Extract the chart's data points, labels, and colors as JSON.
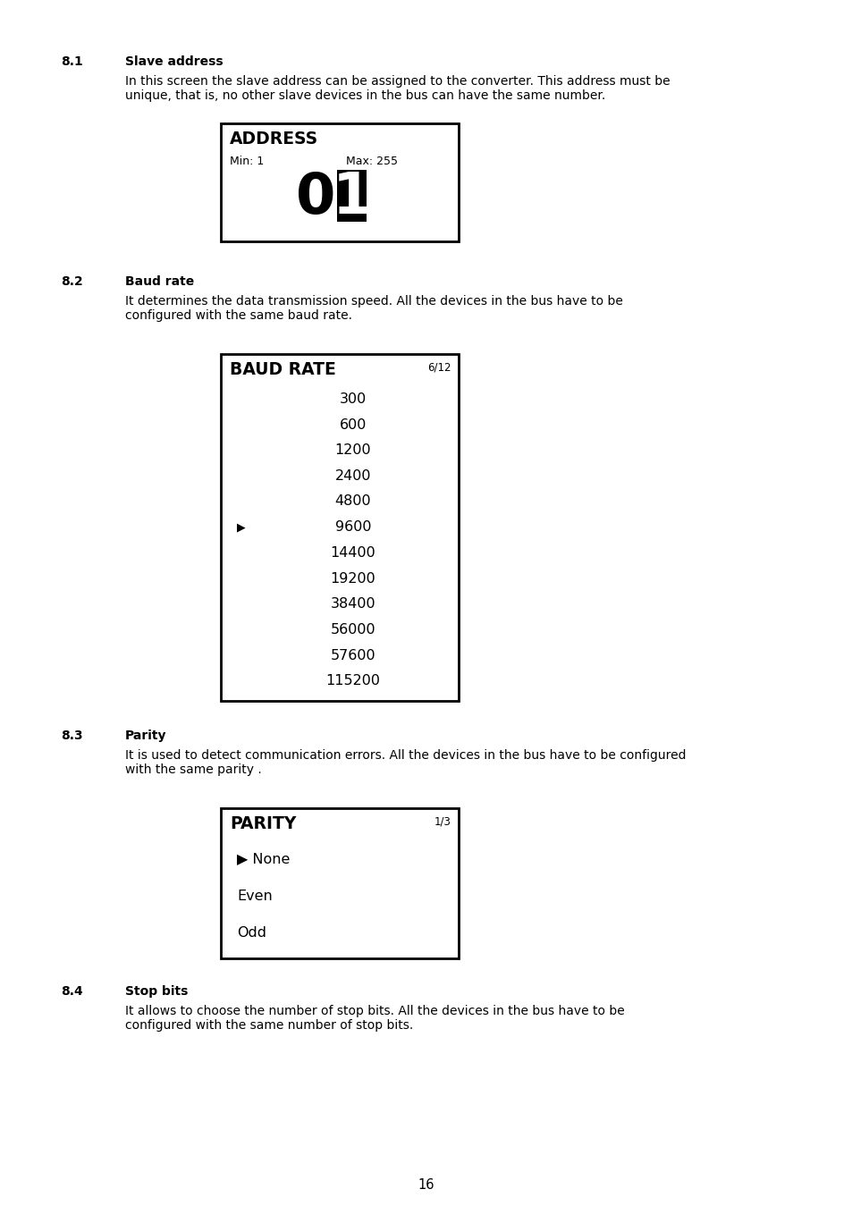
{
  "page_background": "#ffffff",
  "text_color": "#000000",
  "box_border_color": "#000000",
  "section_81_number": "8.1",
  "section_81_title": "Slave address",
  "section_81_body1": "In this screen the slave address can be assigned to the converter. This address must be",
  "section_81_body2": "unique, that is, no other slave devices in the bus can have the same number.",
  "address_box_title": "ADDRESS",
  "address_box_min": "Min: 1",
  "address_box_max": "Max: 255",
  "address_value_0": "0",
  "address_value_1": "1",
  "section_82_number": "8.2",
  "section_82_title": "Baud rate",
  "section_82_body1": "It determines the data transmission speed. All the devices in the bus have to be",
  "section_82_body2": "configured with the same baud rate.",
  "baudrate_box_title": "BAUD RATE",
  "baudrate_box_counter": "6/12",
  "baudrate_items": [
    "300",
    "600",
    "1200",
    "2400",
    "4800",
    "9600",
    "14400",
    "19200",
    "38400",
    "56000",
    "57600",
    "115200"
  ],
  "baudrate_selected_index": 5,
  "section_83_number": "8.3",
  "section_83_title": "Parity",
  "section_83_body1": "It is used to detect communication errors. All the devices in the bus have to be configured",
  "section_83_body2": "with the same parity .",
  "parity_box_title": "PARITY",
  "parity_box_counter": "1/3",
  "parity_items": [
    "▶ None",
    "Even",
    "Odd"
  ],
  "section_84_number": "8.4",
  "section_84_title": "Stop bits",
  "section_84_body1": "It allows to choose the number of stop bits. All the devices in the bus have to be",
  "section_84_body2": "configured with the same number of stop bits.",
  "page_number": "16",
  "font_size_body": 10.0,
  "font_size_section_num": 10.0,
  "font_size_section_title": 10.0,
  "font_size_box_title": 12.5,
  "font_size_box_items": 11.5,
  "font_size_address_big": 46,
  "font_size_counter": 8.5,
  "font_size_page": 10.5
}
